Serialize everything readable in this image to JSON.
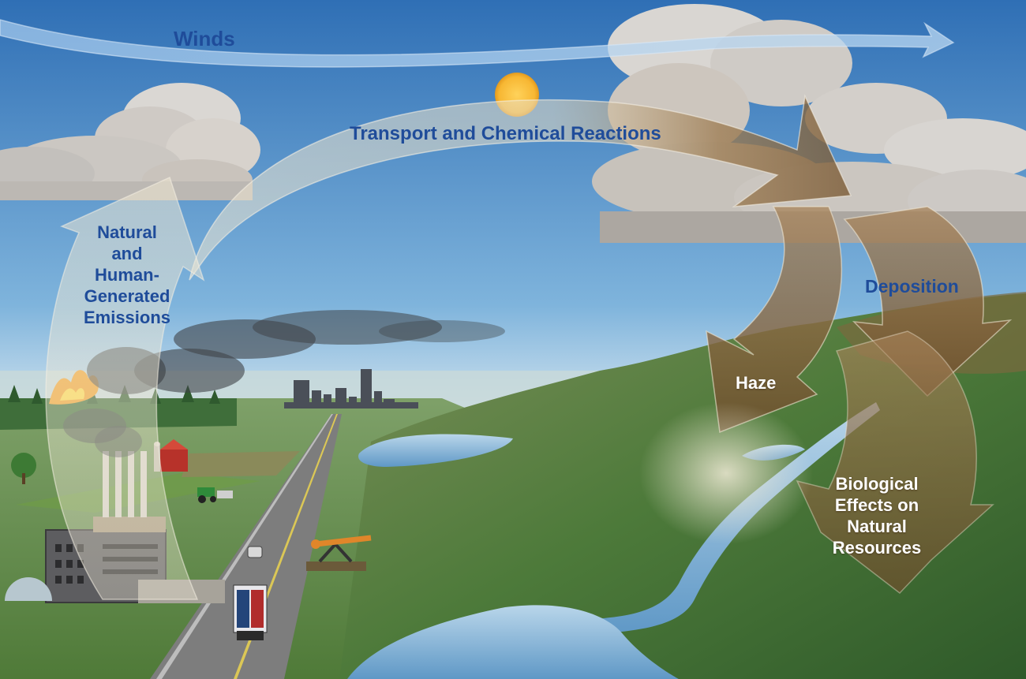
{
  "labels": {
    "winds": "Winds",
    "transport": "Transport and Chemical Reactions",
    "emissions": [
      "Natural",
      "and",
      "Human-",
      "Generated",
      "Emissions"
    ],
    "deposition": "Deposition",
    "haze": "Haze",
    "biological": [
      "Biological",
      "Effects on",
      "Natural",
      "Resources"
    ]
  },
  "colors": {
    "sky_top": "#2f6fb5",
    "sky_mid": "#7fb4dc",
    "sky_horizon": "#d6e6f0",
    "label_blue": "#1f4c9a",
    "label_white": "#ffffff",
    "arrow_light": "#e9e2d0",
    "arrow_tan": "#a8845a",
    "arrow_dark": "#6d4e2c",
    "ground": "#5f8c46",
    "water": "#7fb3d8",
    "sun": "#f7b733"
  },
  "icons": [
    "sun-icon",
    "cloud-icon",
    "factory-icon",
    "barn-icon",
    "truck-icon",
    "oil-pump-icon",
    "fire-icon",
    "city-skyline-icon",
    "tractor-icon",
    "tree-icon"
  ]
}
